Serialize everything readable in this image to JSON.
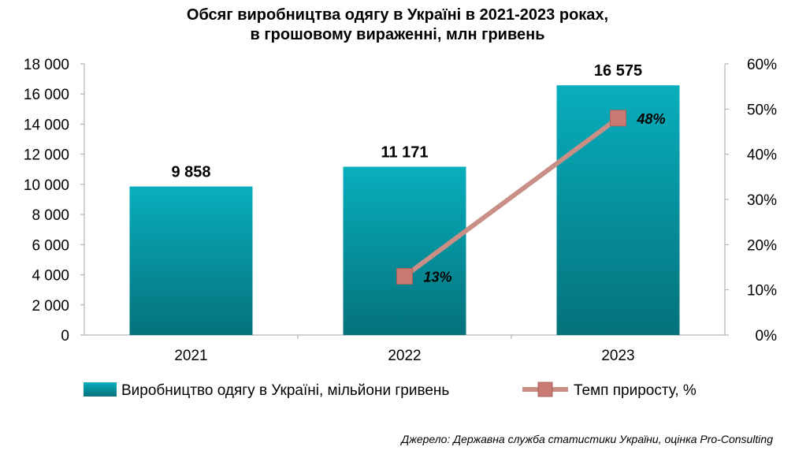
{
  "title_line1": "Обсяг виробництва одягу в Україні в 2021-2023 роках,",
  "title_line2": "в грошовому вираженні, млн гривень",
  "source": "Джерело: Державна служба статистики України, оцінка Pro-Consulting",
  "colors": {
    "bar_top": "#08aebd",
    "bar_bottom": "#04727b",
    "line": "#c98e86",
    "marker": "#c97a72",
    "axis": "#a6a6a6"
  },
  "chart_data": {
    "type": "bar",
    "categories": [
      "2021",
      "2022",
      "2023"
    ],
    "series": [
      {
        "name": "Виробництво одягу в Україні, мільйони гривень",
        "type": "bar",
        "axis": "left",
        "values": [
          9858,
          11171,
          16575
        ],
        "labels": [
          "9 858",
          "11 171",
          "16 575"
        ]
      },
      {
        "name": "Темп приросту, %",
        "type": "line",
        "axis": "right",
        "values": [
          null,
          13,
          48
        ],
        "labels": [
          "",
          "13%",
          "48%"
        ]
      }
    ],
    "left_axis": {
      "ylim": [
        0,
        18000
      ],
      "ticks": [
        "0",
        "2 000",
        "4 000",
        "6 000",
        "8 000",
        "10 000",
        "12 000",
        "14 000",
        "16 000",
        "18 000"
      ]
    },
    "right_axis": {
      "ylim": [
        0,
        60
      ],
      "ticks": [
        "0%",
        "10%",
        "20%",
        "30%",
        "40%",
        "50%",
        "60%"
      ]
    },
    "legend_position": "bottom",
    "grid": false
  }
}
